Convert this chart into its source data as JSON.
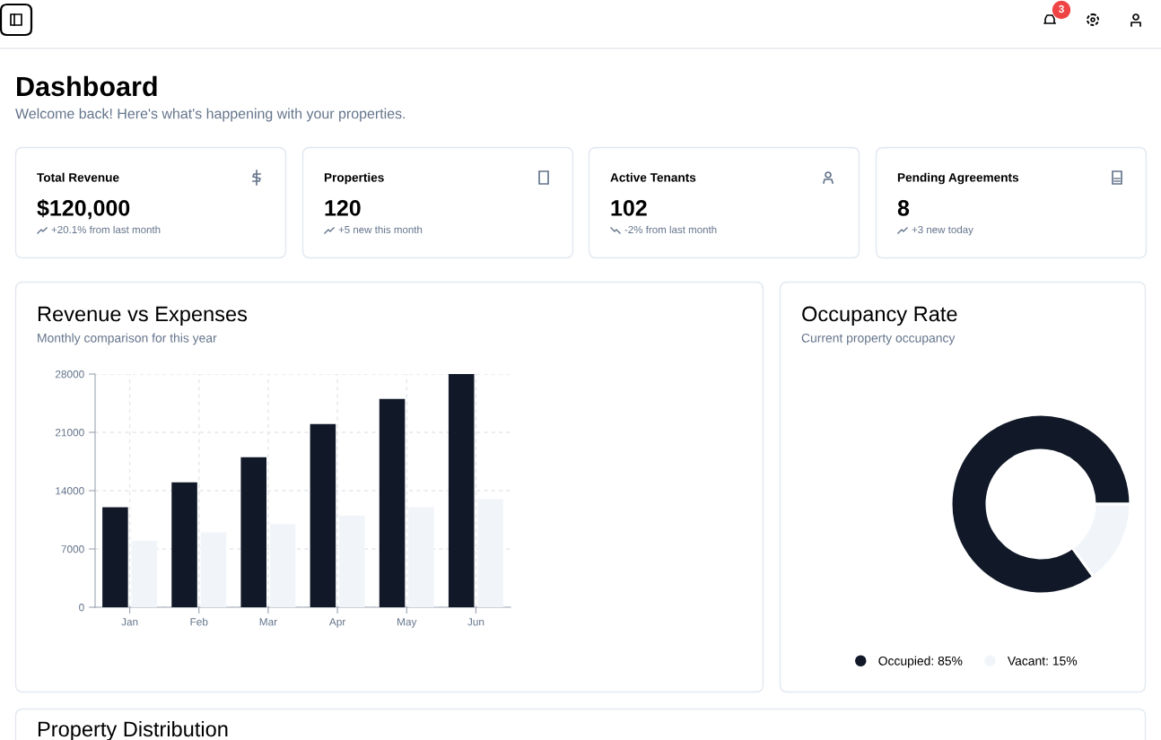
{
  "chart_data": [
    {
      "type": "other",
      "title": "Dashboard",
      "subtitle": "Welcome back! Here's what's happening with your properties.",
      "annotations": [
        "3"
      ]
    },
    {
      "type": "other",
      "title": "Total Revenue",
      "subtitle": "$120,000",
      "annotations": [
        "+20.1% from last month"
      ]
    },
    {
      "type": "other",
      "title": "Properties",
      "subtitle": "120",
      "annotations": [
        "+5 new this month"
      ]
    },
    {
      "type": "other",
      "title": "Active Tenants",
      "subtitle": "102",
      "annotations": [
        "-2% from last month"
      ]
    },
    {
      "type": "other",
      "title": "Pending Agreements",
      "subtitle": "8",
      "annotations": [
        "+3 new today"
      ]
    },
    {
      "type": "bar",
      "title": "Revenue vs Expenses",
      "subtitle": "Monthly comparison for this year",
      "categories": [
        "Jan",
        "Feb",
        "Mar",
        "Apr",
        "May",
        "Jun"
      ],
      "ylim": [
        0,
        28000
      ],
      "yticks": [
        0,
        7000,
        14000,
        21000,
        28000
      ],
      "grid": true,
      "series": [
        {
          "color": "#111827",
          "values": [
            12000,
            15000,
            18000,
            22000,
            25000,
            28000
          ]
        },
        {
          "color": "#f1f5f9",
          "values": [
            8000,
            9000,
            10000,
            11000,
            12000,
            13000
          ]
        }
      ]
    },
    {
      "type": "donut",
      "title": "Occupancy Rate",
      "subtitle": "Current property occupancy",
      "categories": [
        "Occupied: 85%",
        "Vacant: 15%"
      ],
      "values": [
        85,
        15
      ],
      "colors": [
        "#111827",
        "#f1f5f9"
      ],
      "legend": "bottom"
    },
    {
      "type": "other",
      "title": "Property Distribution"
    }
  ]
}
